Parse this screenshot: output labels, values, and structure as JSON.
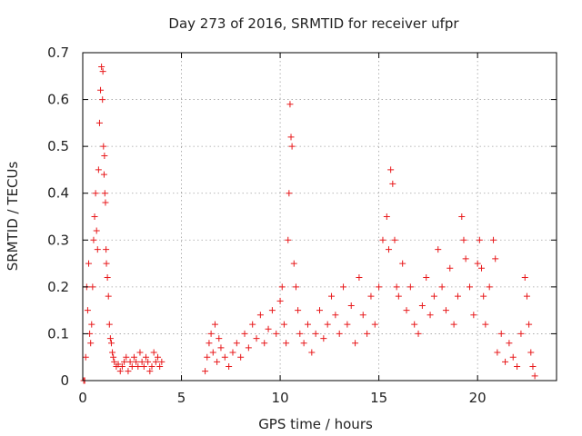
{
  "chart_data": {
    "type": "scatter",
    "title": "Day 273 of 2016, SRMTID for receiver ufpr",
    "xlabel": "GPS time / hours",
    "ylabel": "SRMTID / TECUs",
    "xlim": [
      0,
      24
    ],
    "ylim": [
      0,
      0.7
    ],
    "xticks": [
      0,
      5,
      10,
      15,
      20
    ],
    "yticks": [
      0,
      0.1,
      0.2,
      0.3,
      0.4,
      0.5,
      0.6,
      0.7
    ],
    "xtick_labels": [
      "0",
      "5",
      "10",
      "15",
      "20"
    ],
    "ytick_labels": [
      "0",
      "0.1",
      "0.2",
      "0.3",
      "0.4",
      "0.5",
      "0.6",
      "0.7"
    ],
    "grid": true,
    "marker": "+",
    "color": "#e8191b",
    "series": [
      {
        "name": "SRMTID",
        "x": [
          0.05,
          0.1,
          0.15,
          0.2,
          0.25,
          0.3,
          0.35,
          0.4,
          0.45,
          0.5,
          0.55,
          0.6,
          0.65,
          0.7,
          0.75,
          0.8,
          0.85,
          0.9,
          0.95,
          1.0,
          1.02,
          1.05,
          1.08,
          1.1,
          1.12,
          1.15,
          1.18,
          1.2,
          1.25,
          1.3,
          1.35,
          1.4,
          1.45,
          1.5,
          1.55,
          1.6,
          1.7,
          1.8,
          1.9,
          2.0,
          2.1,
          2.2,
          2.3,
          2.4,
          2.5,
          2.6,
          2.7,
          2.8,
          2.9,
          3.0,
          3.1,
          3.2,
          3.3,
          3.4,
          3.5,
          3.6,
          3.7,
          3.8,
          3.9,
          4.0,
          6.2,
          6.3,
          6.4,
          6.5,
          6.6,
          6.7,
          6.8,
          6.9,
          7.0,
          7.2,
          7.4,
          7.6,
          7.8,
          8.0,
          8.2,
          8.4,
          8.6,
          8.8,
          9.0,
          9.2,
          9.4,
          9.6,
          9.8,
          10.0,
          10.1,
          10.2,
          10.3,
          10.4,
          10.45,
          10.5,
          10.55,
          10.6,
          10.7,
          10.8,
          10.9,
          11.0,
          11.2,
          11.4,
          11.6,
          11.8,
          12.0,
          12.2,
          12.4,
          12.6,
          12.8,
          13.0,
          13.2,
          13.4,
          13.6,
          13.8,
          14.0,
          14.2,
          14.4,
          14.6,
          14.8,
          15.0,
          15.2,
          15.4,
          15.5,
          15.6,
          15.7,
          15.8,
          15.9,
          16.0,
          16.2,
          16.4,
          16.6,
          16.8,
          17.0,
          17.2,
          17.4,
          17.6,
          17.8,
          18.0,
          18.2,
          18.4,
          18.6,
          18.8,
          19.0,
          19.2,
          19.3,
          19.4,
          19.6,
          19.8,
          20.0,
          20.1,
          20.2,
          20.3,
          20.4,
          20.6,
          20.8,
          20.9,
          21.0,
          21.2,
          21.4,
          21.6,
          21.8,
          22.0,
          22.2,
          22.4,
          22.5,
          22.6,
          22.7,
          22.8,
          22.9
        ],
        "y": [
          0.0,
          0.0,
          0.05,
          0.2,
          0.15,
          0.25,
          0.1,
          0.08,
          0.12,
          0.2,
          0.3,
          0.35,
          0.4,
          0.32,
          0.28,
          0.45,
          0.55,
          0.62,
          0.67,
          0.6,
          0.66,
          0.5,
          0.44,
          0.48,
          0.4,
          0.38,
          0.28,
          0.25,
          0.22,
          0.18,
          0.12,
          0.09,
          0.08,
          0.06,
          0.05,
          0.04,
          0.03,
          0.035,
          0.02,
          0.03,
          0.04,
          0.05,
          0.02,
          0.04,
          0.03,
          0.05,
          0.04,
          0.03,
          0.06,
          0.04,
          0.03,
          0.05,
          0.04,
          0.02,
          0.03,
          0.06,
          0.04,
          0.05,
          0.03,
          0.04,
          0.02,
          0.05,
          0.08,
          0.1,
          0.06,
          0.12,
          0.04,
          0.09,
          0.07,
          0.05,
          0.03,
          0.06,
          0.08,
          0.05,
          0.1,
          0.07,
          0.12,
          0.09,
          0.14,
          0.08,
          0.11,
          0.15,
          0.1,
          0.17,
          0.2,
          0.12,
          0.08,
          0.3,
          0.4,
          0.59,
          0.52,
          0.5,
          0.25,
          0.2,
          0.15,
          0.1,
          0.08,
          0.12,
          0.06,
          0.1,
          0.15,
          0.09,
          0.12,
          0.18,
          0.14,
          0.1,
          0.2,
          0.12,
          0.16,
          0.08,
          0.22,
          0.14,
          0.1,
          0.18,
          0.12,
          0.2,
          0.3,
          0.35,
          0.28,
          0.45,
          0.42,
          0.3,
          0.2,
          0.18,
          0.25,
          0.15,
          0.2,
          0.12,
          0.1,
          0.16,
          0.22,
          0.14,
          0.18,
          0.28,
          0.2,
          0.15,
          0.24,
          0.12,
          0.18,
          0.35,
          0.3,
          0.26,
          0.2,
          0.14,
          0.25,
          0.3,
          0.24,
          0.18,
          0.12,
          0.2,
          0.3,
          0.26,
          0.06,
          0.1,
          0.04,
          0.08,
          0.05,
          0.03,
          0.1,
          0.22,
          0.18,
          0.12,
          0.06,
          0.03,
          0.01
        ]
      }
    ]
  }
}
